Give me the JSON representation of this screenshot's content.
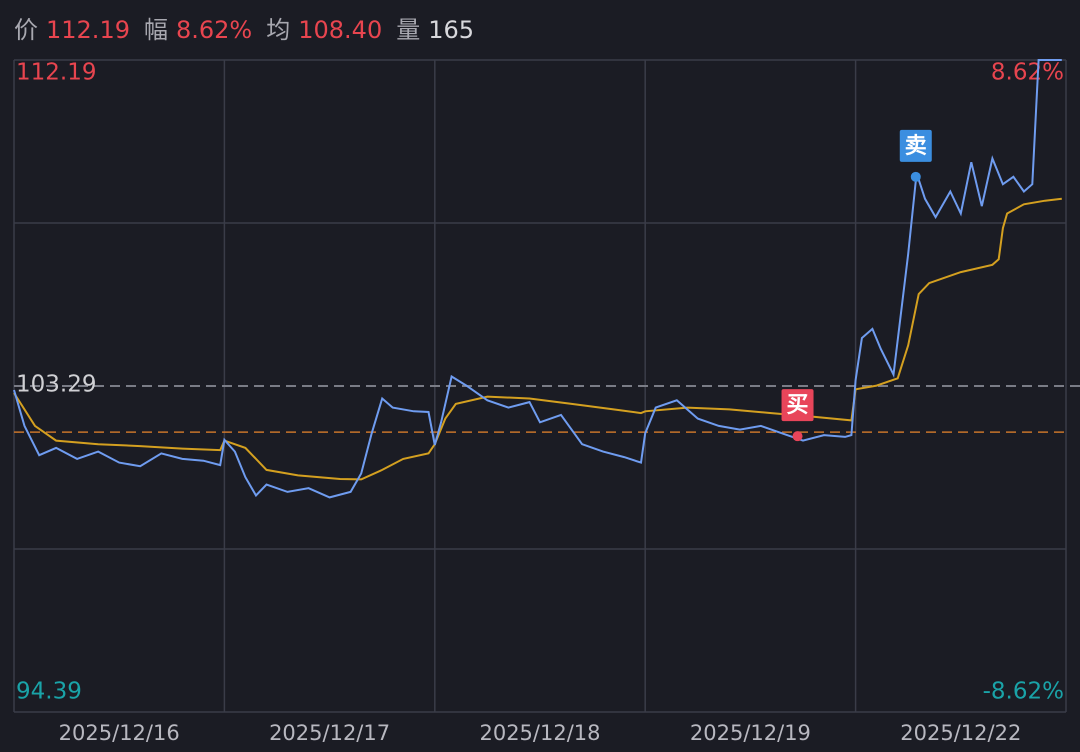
{
  "chart_data": {
    "type": "line",
    "header": [
      {
        "label": "价",
        "value": "112.19",
        "color": "#e8454f"
      },
      {
        "label": "幅",
        "value": "8.62%",
        "color": "#e8454f"
      },
      {
        "label": "均",
        "value": "108.40",
        "color": "#e8454f"
      },
      {
        "label": "量",
        "value": "165",
        "color": "#d8d8dc"
      }
    ],
    "categories": [
      "2025/12/16",
      "2025/12/17",
      "2025/12/18",
      "2025/12/19",
      "2025/12/22"
    ],
    "xlim": [
      0,
      5
    ],
    "ylim": [
      94.39,
      112.19
    ],
    "yticks": [
      94.39,
      103.29,
      112.19
    ],
    "ytick_colors": [
      "#1aa3a8",
      "#d0d0d4",
      "#e8454f"
    ],
    "y2lim": [
      -8.62,
      8.62
    ],
    "y2ticks": [
      {
        "value": -8.62,
        "label": "-8.62%"
      },
      {
        "value": 8.62,
        "label": "8.62%"
      }
    ],
    "y2tick_colors": [
      "#1aa3a8",
      "#e8454f"
    ],
    "reference_line": {
      "value": 102.03,
      "color": "#c8742a"
    },
    "series": [
      {
        "name": "价",
        "color": "#6f9cf0",
        "x": [
          0,
          0.05,
          0.12,
          0.2,
          0.3,
          0.4,
          0.5,
          0.6,
          0.7,
          0.8,
          0.9,
          0.98,
          1.0,
          1.05,
          1.1,
          1.15,
          1.2,
          1.3,
          1.4,
          1.5,
          1.6,
          1.65,
          1.7,
          1.75,
          1.8,
          1.9,
          1.97,
          2.0,
          2.03,
          2.08,
          2.15,
          2.25,
          2.35,
          2.45,
          2.5,
          2.6,
          2.7,
          2.8,
          2.9,
          2.98,
          3.0,
          3.05,
          3.15,
          3.25,
          3.35,
          3.45,
          3.55,
          3.65,
          3.75,
          3.85,
          3.95,
          3.98,
          4.0,
          4.03,
          4.08,
          4.12,
          4.18,
          4.25,
          4.29,
          4.33,
          4.38,
          4.45,
          4.5,
          4.55,
          4.6,
          4.65,
          4.7,
          4.75,
          4.8,
          4.84,
          4.87,
          4.98
        ],
        "values": [
          103.18,
          102.2,
          101.4,
          101.6,
          101.3,
          101.5,
          101.2,
          101.1,
          101.45,
          101.3,
          101.25,
          101.13,
          101.82,
          101.5,
          100.8,
          100.3,
          100.6,
          100.4,
          100.5,
          100.25,
          100.4,
          100.9,
          102.0,
          102.95,
          102.7,
          102.6,
          102.58,
          101.68,
          102.3,
          103.55,
          103.3,
          102.9,
          102.7,
          102.85,
          102.3,
          102.5,
          101.7,
          101.5,
          101.35,
          101.2,
          102.0,
          102.7,
          102.9,
          102.4,
          102.2,
          102.1,
          102.2,
          102.0,
          101.8,
          101.95,
          101.9,
          101.95,
          103.45,
          104.6,
          104.85,
          104.3,
          103.6,
          106.9,
          109.1,
          108.4,
          107.9,
          108.6,
          108.0,
          109.4,
          108.2,
          109.5,
          108.8,
          109.0,
          108.6,
          108.8,
          112.19,
          112.19
        ]
      },
      {
        "name": "均",
        "color": "#d4a020",
        "x": [
          0,
          0.1,
          0.2,
          0.4,
          0.6,
          0.8,
          0.98,
          1.0,
          1.1,
          1.2,
          1.35,
          1.55,
          1.65,
          1.75,
          1.85,
          1.97,
          2.0,
          2.05,
          2.1,
          2.25,
          2.45,
          2.65,
          2.85,
          2.98,
          3.0,
          3.2,
          3.4,
          3.6,
          3.8,
          3.98,
          4.0,
          4.1,
          4.2,
          4.25,
          4.3,
          4.35,
          4.5,
          4.65,
          4.68,
          4.7,
          4.72,
          4.8,
          4.9,
          4.98
        ],
        "values": [
          103.1,
          102.2,
          101.8,
          101.7,
          101.65,
          101.58,
          101.54,
          101.8,
          101.6,
          101.0,
          100.85,
          100.75,
          100.74,
          101.0,
          101.3,
          101.45,
          101.7,
          102.4,
          102.8,
          103.0,
          102.95,
          102.8,
          102.65,
          102.55,
          102.6,
          102.7,
          102.65,
          102.55,
          102.45,
          102.35,
          103.2,
          103.3,
          103.5,
          104.4,
          105.8,
          106.1,
          106.4,
          106.6,
          106.75,
          107.6,
          108.0,
          108.25,
          108.35,
          108.4
        ]
      }
    ],
    "markers": [
      {
        "label": "买",
        "x": 3.724,
        "value": 101.92,
        "color": "#e8455a"
      },
      {
        "label": "卖",
        "x": 4.286,
        "value": 109.0,
        "color": "#3b8ee0"
      }
    ]
  }
}
